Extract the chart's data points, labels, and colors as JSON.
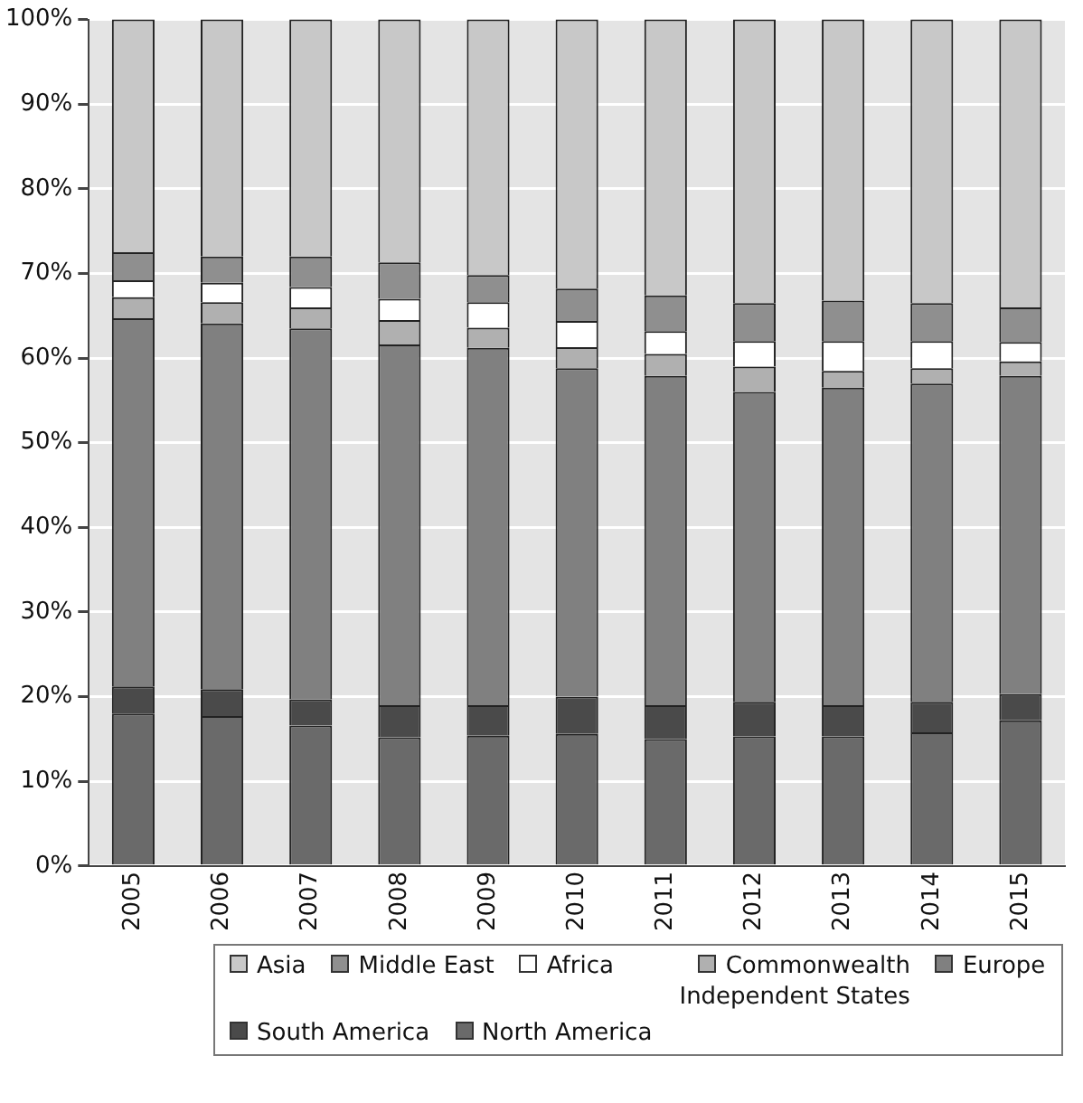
{
  "chart_data": {
    "type": "bar",
    "stacked": true,
    "categories": [
      "2005",
      "2006",
      "2007",
      "2008",
      "2009",
      "2010",
      "2011",
      "2012",
      "2013",
      "2014",
      "2015"
    ],
    "series": [
      {
        "name": "North America",
        "color": "#6a6a6a",
        "values": [
          18,
          17.7,
          16.6,
          15.2,
          15.4,
          15.6,
          15.0,
          15.3,
          15.3,
          15.8,
          17.2
        ]
      },
      {
        "name": "South America",
        "color": "#4a4a4a",
        "values": [
          3.2,
          3.2,
          3.1,
          3.8,
          3.6,
          4.4,
          4.0,
          4.1,
          3.7,
          3.6,
          3.1
        ]
      },
      {
        "name": "Europe",
        "color": "#808080",
        "values": [
          43.5,
          43.2,
          43.8,
          42.6,
          42.2,
          38.8,
          38.9,
          36.6,
          37.5,
          37.6,
          37.6
        ]
      },
      {
        "name": "Commonwealth Independent States",
        "color": "#b0b0b0",
        "values": [
          2.5,
          2.5,
          2.5,
          2.9,
          2.4,
          2.5,
          2.6,
          3.0,
          2.0,
          1.8,
          1.7
        ]
      },
      {
        "name": "Africa",
        "color": "#ffffff",
        "values": [
          2.0,
          2.3,
          2.4,
          2.5,
          3.0,
          3.1,
          2.7,
          3.0,
          3.5,
          3.2,
          2.3
        ]
      },
      {
        "name": "Middle East",
        "color": "#8f8f8f",
        "values": [
          3.3,
          3.1,
          3.6,
          4.3,
          3.2,
          3.8,
          4.2,
          4.5,
          4.8,
          4.5,
          4.1
        ]
      },
      {
        "name": "Asia",
        "color": "#c8c8c8",
        "values": [
          27.5,
          28.0,
          28.0,
          28.7,
          30.2,
          31.8,
          32.6,
          33.5,
          33.2,
          33.5,
          34.0
        ]
      }
    ],
    "ylim": [
      0,
      100
    ],
    "yticks": [
      {
        "value": 0,
        "label": "0%"
      },
      {
        "value": 10,
        "label": "10%"
      },
      {
        "value": 20,
        "label": "20%"
      },
      {
        "value": 30,
        "label": "30%"
      },
      {
        "value": 40,
        "label": "40%"
      },
      {
        "value": 50,
        "label": "50%"
      },
      {
        "value": 60,
        "label": "60%"
      },
      {
        "value": 70,
        "label": "70%"
      },
      {
        "value": 80,
        "label": "80%"
      },
      {
        "value": 90,
        "label": "90%"
      },
      {
        "value": 100,
        "label": "100%"
      }
    ],
    "grid": "y",
    "legend": "bottom"
  }
}
